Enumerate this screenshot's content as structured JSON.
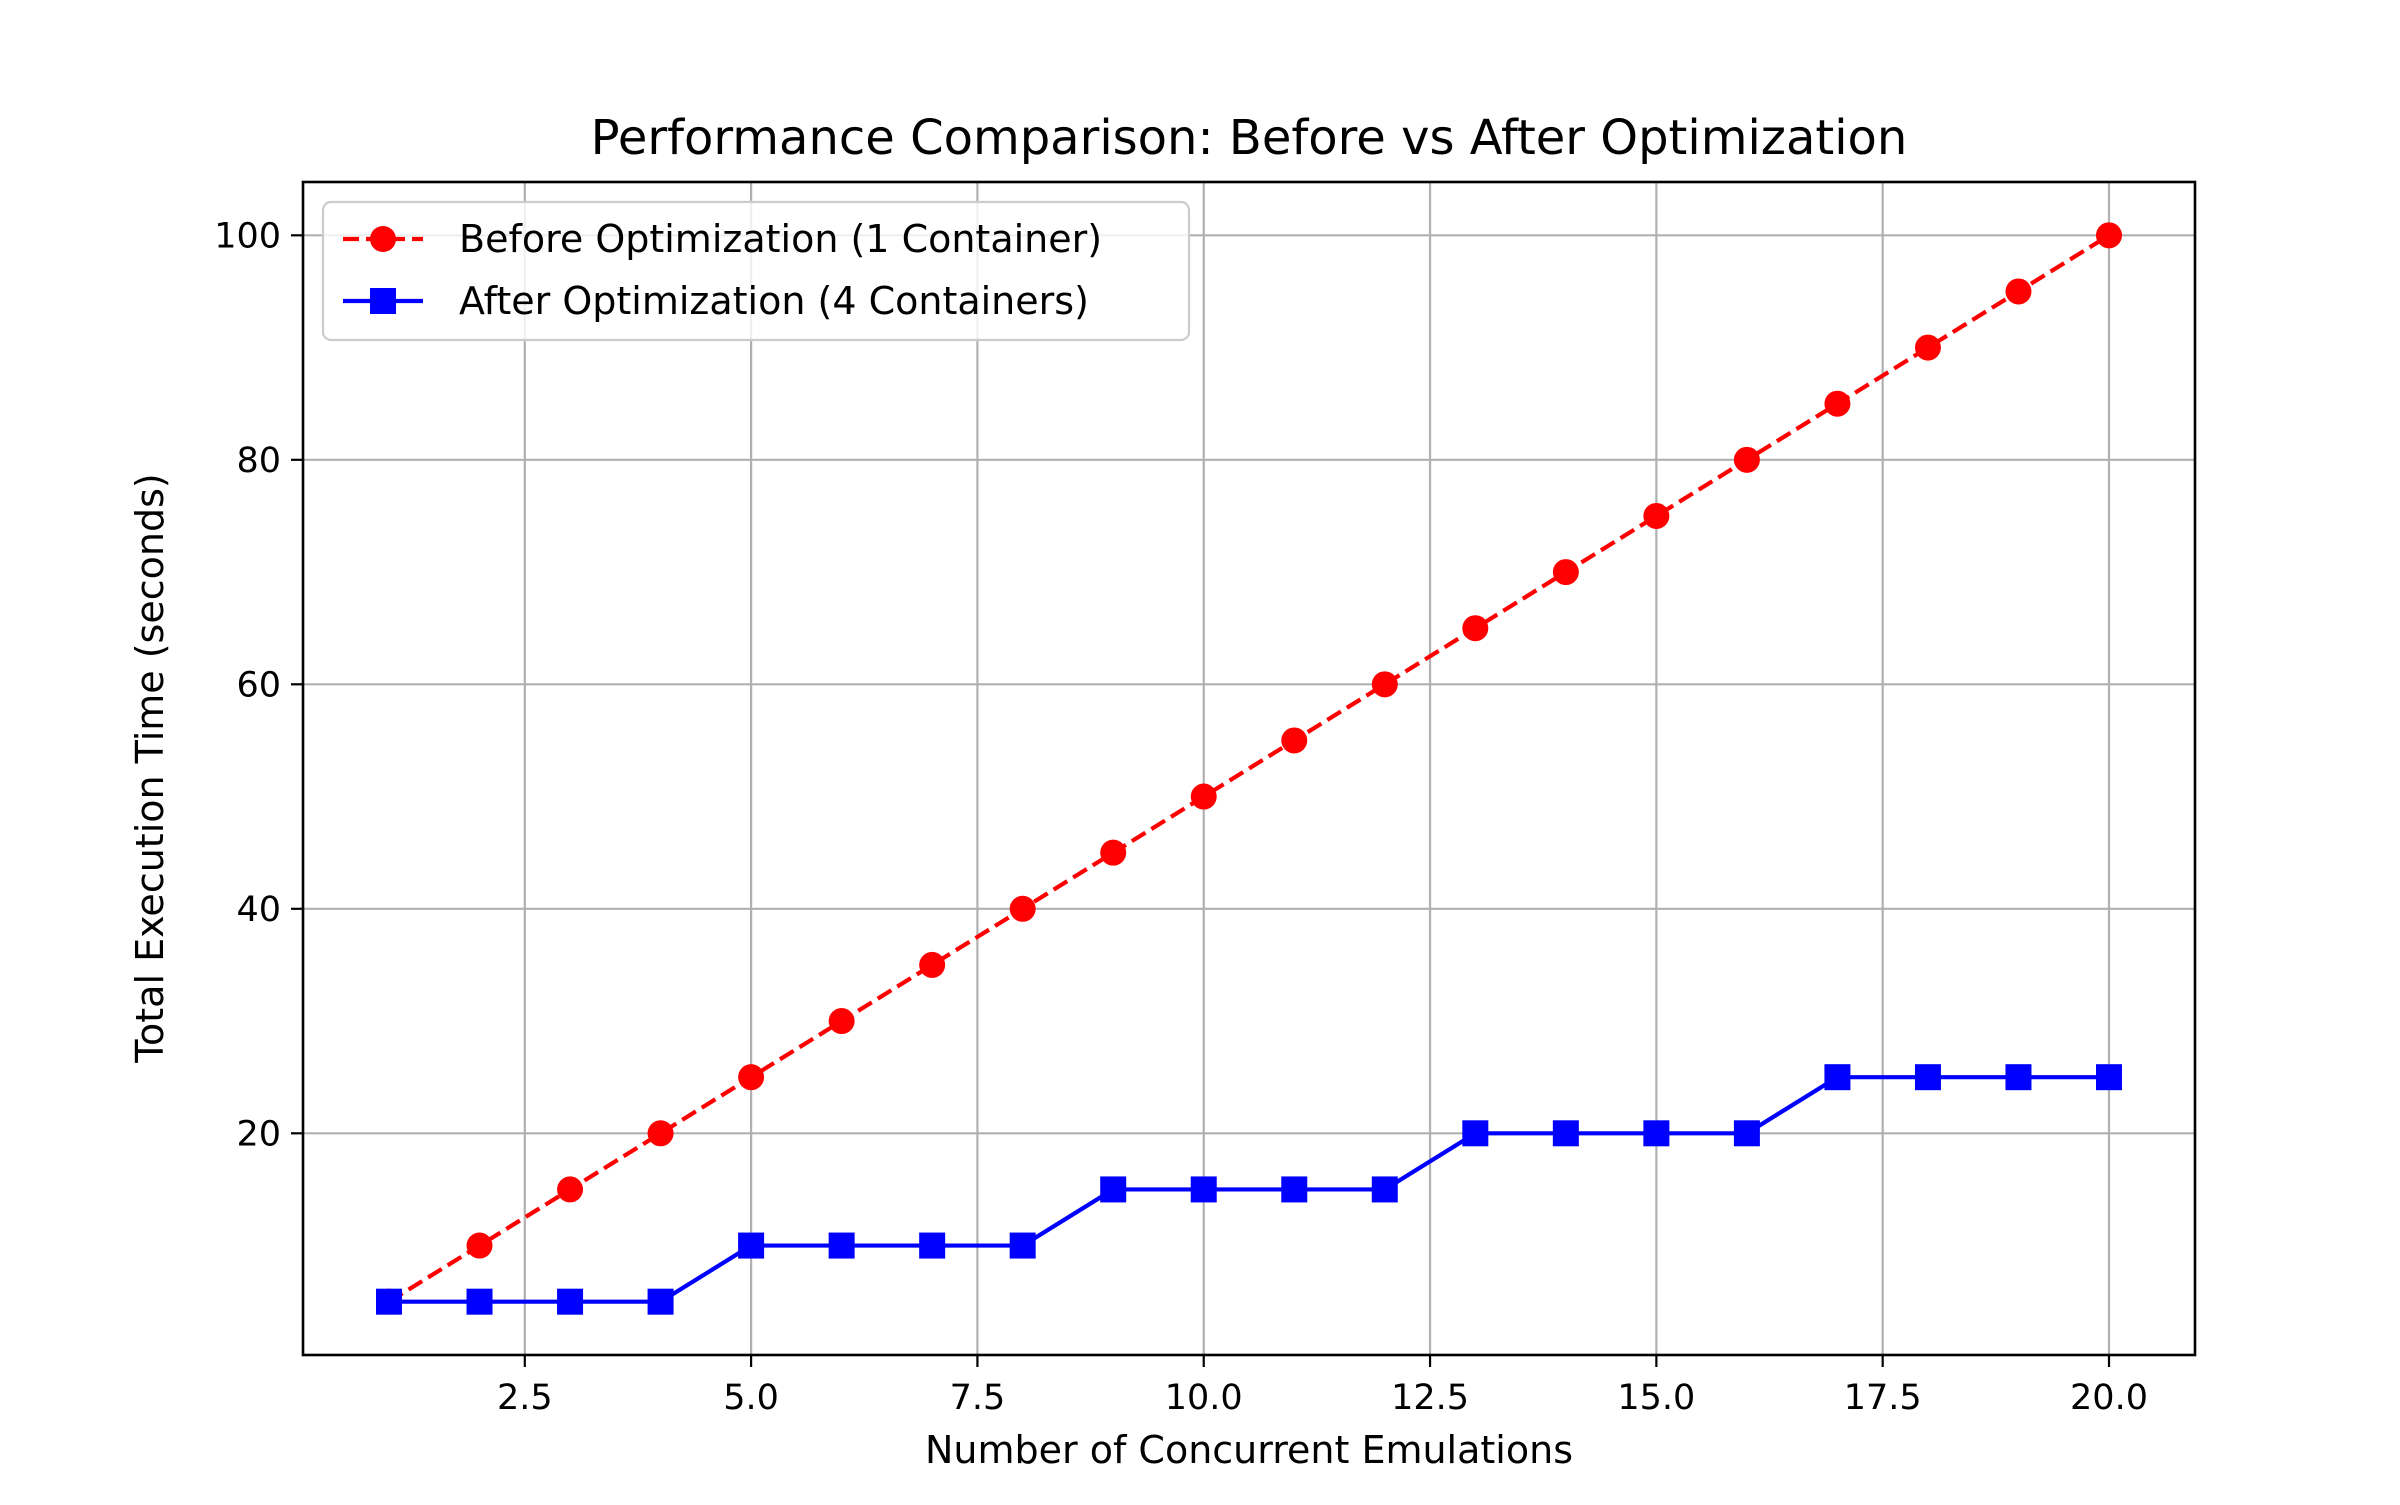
{
  "chart_data": {
    "type": "line",
    "title": "Performance Comparison: Before vs After Optimization",
    "xlabel": "Number of Concurrent Emulations",
    "ylabel": "Total Execution Time (seconds)",
    "xlim": [
      0.05,
      20.95
    ],
    "ylim": [
      0.25,
      104.75
    ],
    "x_ticks": [
      2.5,
      5.0,
      7.5,
      10.0,
      12.5,
      15.0,
      17.5,
      20.0
    ],
    "x_tick_labels": [
      "2.5",
      "5.0",
      "7.5",
      "10.0",
      "12.5",
      "15.0",
      "17.5",
      "20.0"
    ],
    "y_ticks": [
      20,
      40,
      60,
      80,
      100
    ],
    "y_tick_labels": [
      "20",
      "40",
      "60",
      "80",
      "100"
    ],
    "grid": true,
    "legend_position": "top-left",
    "x": [
      1,
      2,
      3,
      4,
      5,
      6,
      7,
      8,
      9,
      10,
      11,
      12,
      13,
      14,
      15,
      16,
      17,
      18,
      19,
      20
    ],
    "series": [
      {
        "name": "Before Optimization (1 Container)",
        "color": "#ff0000",
        "line_style": "dashed",
        "marker": "circle",
        "values": [
          5,
          10,
          15,
          20,
          25,
          30,
          35,
          40,
          45,
          50,
          55,
          60,
          65,
          70,
          75,
          80,
          85,
          90,
          95,
          100
        ]
      },
      {
        "name": "After Optimization (4 Containers)",
        "color": "#0000ff",
        "line_style": "solid",
        "marker": "square",
        "values": [
          5,
          5,
          5,
          5,
          10,
          10,
          10,
          10,
          15,
          15,
          15,
          15,
          20,
          20,
          20,
          20,
          25,
          25,
          25,
          25
        ]
      }
    ]
  }
}
